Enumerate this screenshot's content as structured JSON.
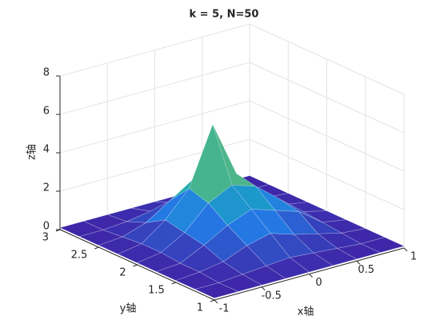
{
  "chart_data": {
    "type": "surface",
    "title": "k = 5,  N=50",
    "xlabel": "x轴",
    "ylabel": "y轴",
    "zlabel": "z轴",
    "x": [
      -1,
      -0.75,
      -0.5,
      -0.25,
      0,
      0.25,
      0.5,
      0.75,
      1
    ],
    "y": [
      1,
      1.25,
      1.5,
      1.75,
      2,
      2.25,
      2.5,
      2.75,
      3
    ],
    "z": [
      [
        0.1,
        0.1,
        0.1,
        0.1,
        0.1,
        0.1,
        0.1,
        0.1,
        0.1
      ],
      [
        0.1,
        0.1,
        0.2,
        0.3,
        0.4,
        0.3,
        0.2,
        0.1,
        0.1
      ],
      [
        0.1,
        0.2,
        0.4,
        0.9,
        1.2,
        0.8,
        0.5,
        0.2,
        0.1
      ],
      [
        0.1,
        0.2,
        0.8,
        1.5,
        2.0,
        1.6,
        1.2,
        0.3,
        0.1
      ],
      [
        0.1,
        0.3,
        1.0,
        2.2,
        2.8,
        2.4,
        1.4,
        0.4,
        0.1
      ],
      [
        0.1,
        0.3,
        1.2,
        2.5,
        5.5,
        2.6,
        1.0,
        0.3,
        0.1
      ],
      [
        0.1,
        0.2,
        0.6,
        1.4,
        2.2,
        1.2,
        0.5,
        0.2,
        0.1
      ],
      [
        0.1,
        0.1,
        0.2,
        0.4,
        0.5,
        0.4,
        0.2,
        0.1,
        0.1
      ],
      [
        0.1,
        0.1,
        0.1,
        0.1,
        0.1,
        0.1,
        0.1,
        0.1,
        0.1
      ]
    ],
    "xlim": [
      -1,
      1
    ],
    "ylim": [
      1,
      3
    ],
    "zlim": [
      0,
      8
    ],
    "xticks": [
      -1,
      -0.5,
      0,
      0.5,
      1
    ],
    "yticks": [
      1,
      1.5,
      2,
      2.5,
      3
    ],
    "zticks": [
      0,
      2,
      4,
      6,
      8
    ],
    "grid": true,
    "colormap": "parula"
  }
}
